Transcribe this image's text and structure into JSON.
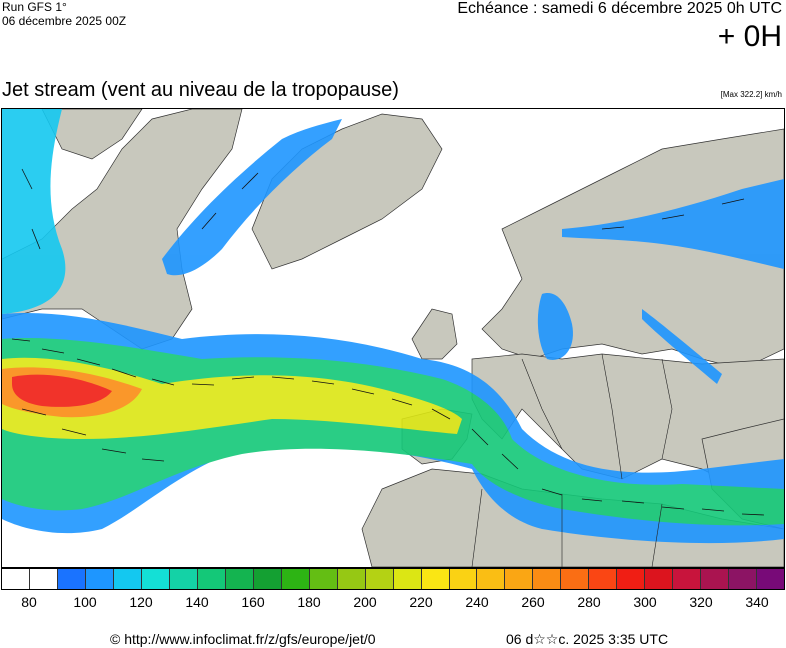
{
  "header": {
    "run_title": "Run GFS 1°",
    "run_date": "06 décembre 2025 00Z",
    "valid_time": "Echéance : samedi 6 décembre 2025 0h UTC",
    "lead_time": "+ 0H"
  },
  "map": {
    "title": "Jet stream (vent au niveau de la tropopause)",
    "max_label": "[Max 322.2] km/h",
    "land_color": "#c8c8bd",
    "ocean_color": "#ffffff"
  },
  "legend": {
    "colors": [
      "#ffffff",
      "#ffffff",
      "#1a73ff",
      "#1e96ff",
      "#14c8f0",
      "#14e0d6",
      "#14d2a6",
      "#14c878",
      "#14b450",
      "#14a032",
      "#2db414",
      "#64be14",
      "#96c814",
      "#b4d214",
      "#dce614",
      "#fae614",
      "#fad214",
      "#fabe14",
      "#faa614",
      "#fa8c14",
      "#fa6e14",
      "#fa4614",
      "#f01e14",
      "#dc141e",
      "#c8143c",
      "#aa1450",
      "#8c1464",
      "#780a78"
    ],
    "tick_labels": [
      "80",
      "100",
      "120",
      "140",
      "160",
      "180",
      "200",
      "220",
      "240",
      "260",
      "280",
      "300",
      "320",
      "340"
    ]
  },
  "footer": {
    "copyright": "© http://www.infoclimat.fr/z/gfs/europe/jet/0",
    "date": "06 d☆☆c. 2025  3:35 UTC"
  }
}
